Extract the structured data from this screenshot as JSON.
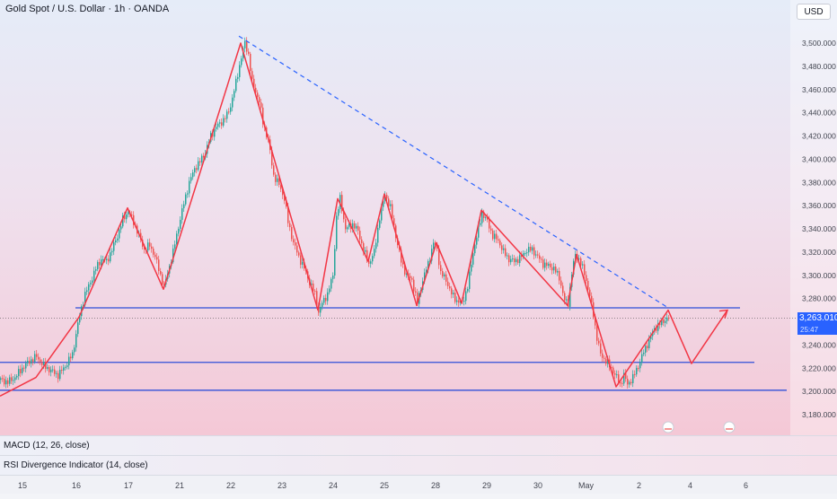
{
  "header": {
    "title": "Gold Spot / U.S. Dollar · 1h · OANDA",
    "currency": "USD"
  },
  "last_price": {
    "value": "3,263.010",
    "countdown": "25:47"
  },
  "indicators": {
    "macd_label": "MACD (12, 26, close)",
    "rsi_label": "RSI Divergence Indicator (14, close)"
  },
  "colors": {
    "up": "#26a69a",
    "down": "#ef5350",
    "pattern": "#f23645",
    "trendline": "#2962ff",
    "support": "#2f4fd8"
  },
  "chart_data": {
    "type": "candlestick",
    "title": "Gold Spot / U.S. Dollar · 1h · OANDA",
    "y_ticks": [
      "3,500.000",
      "3,480.000",
      "3,460.000",
      "3,440.000",
      "3,420.000",
      "3,400.000",
      "3,380.000",
      "3,360.000",
      "3,340.000",
      "3,320.000",
      "3,300.000",
      "3,280.000",
      "3,240.000",
      "3,220.000",
      "3,200.000",
      "3,180.000"
    ],
    "x_ticks": [
      "15",
      "16",
      "17",
      "21",
      "22",
      "23",
      "24",
      "25",
      "28",
      "29",
      "30",
      "May",
      "2",
      "4",
      "6"
    ],
    "ylim": [
      3170,
      3520
    ],
    "last_price": 3263.01,
    "close_path": [
      [
        0,
        3210
      ],
      [
        8,
        3208
      ],
      [
        16,
        3212
      ],
      [
        24,
        3220
      ],
      [
        32,
        3226
      ],
      [
        40,
        3230
      ],
      [
        48,
        3222
      ],
      [
        56,
        3218
      ],
      [
        64,
        3214
      ],
      [
        72,
        3222
      ],
      [
        80,
        3232
      ],
      [
        86,
        3258
      ],
      [
        90,
        3272
      ],
      [
        94,
        3284
      ],
      [
        100,
        3294
      ],
      [
        106,
        3306
      ],
      [
        112,
        3314
      ],
      [
        118,
        3312
      ],
      [
        124,
        3322
      ],
      [
        130,
        3334
      ],
      [
        136,
        3348
      ],
      [
        142,
        3355
      ],
      [
        148,
        3346
      ],
      [
        154,
        3334
      ],
      [
        160,
        3322
      ],
      [
        166,
        3326
      ],
      [
        172,
        3316
      ],
      [
        178,
        3300
      ],
      [
        182,
        3290
      ],
      [
        186,
        3302
      ],
      [
        192,
        3320
      ],
      [
        198,
        3342
      ],
      [
        204,
        3362
      ],
      [
        210,
        3380
      ],
      [
        216,
        3392
      ],
      [
        222,
        3398
      ],
      [
        228,
        3406
      ],
      [
        234,
        3420
      ],
      [
        240,
        3428
      ],
      [
        246,
        3432
      ],
      [
        252,
        3438
      ],
      [
        256,
        3446
      ],
      [
        262,
        3466
      ],
      [
        268,
        3488
      ],
      [
        272,
        3500
      ],
      [
        276,
        3490
      ],
      [
        280,
        3466
      ],
      [
        284,
        3458
      ],
      [
        288,
        3450
      ],
      [
        292,
        3432
      ],
      [
        298,
        3416
      ],
      [
        304,
        3386
      ],
      [
        310,
        3378
      ],
      [
        316,
        3366
      ],
      [
        320,
        3346
      ],
      [
        326,
        3328
      ],
      [
        332,
        3316
      ],
      [
        338,
        3306
      ],
      [
        344,
        3294
      ],
      [
        350,
        3284
      ],
      [
        354,
        3268
      ],
      [
        358,
        3276
      ],
      [
        364,
        3284
      ],
      [
        370,
        3300
      ],
      [
        374,
        3350
      ],
      [
        378,
        3366
      ],
      [
        384,
        3340
      ],
      [
        392,
        3344
      ],
      [
        398,
        3338
      ],
      [
        404,
        3322
      ],
      [
        410,
        3310
      ],
      [
        416,
        3320
      ],
      [
        422,
        3350
      ],
      [
        428,
        3370
      ],
      [
        434,
        3358
      ],
      [
        440,
        3334
      ],
      [
        446,
        3312
      ],
      [
        452,
        3300
      ],
      [
        458,
        3296
      ],
      [
        464,
        3276
      ],
      [
        470,
        3296
      ],
      [
        476,
        3310
      ],
      [
        482,
        3328
      ],
      [
        486,
        3322
      ],
      [
        490,
        3302
      ],
      [
        496,
        3296
      ],
      [
        502,
        3284
      ],
      [
        508,
        3278
      ],
      [
        514,
        3276
      ],
      [
        520,
        3290
      ],
      [
        526,
        3320
      ],
      [
        532,
        3340
      ],
      [
        536,
        3354
      ],
      [
        542,
        3346
      ],
      [
        548,
        3334
      ],
      [
        554,
        3330
      ],
      [
        560,
        3320
      ],
      [
        566,
        3314
      ],
      [
        572,
        3312
      ],
      [
        580,
        3316
      ],
      [
        586,
        3322
      ],
      [
        592,
        3322
      ],
      [
        598,
        3316
      ],
      [
        604,
        3310
      ],
      [
        610,
        3308
      ],
      [
        616,
        3306
      ],
      [
        622,
        3298
      ],
      [
        628,
        3278
      ],
      [
        632,
        3276
      ],
      [
        636,
        3302
      ],
      [
        640,
        3318
      ],
      [
        644,
        3314
      ],
      [
        650,
        3302
      ],
      [
        656,
        3282
      ],
      [
        660,
        3266
      ],
      [
        664,
        3246
      ],
      [
        668,
        3232
      ],
      [
        674,
        3226
      ],
      [
        680,
        3220
      ],
      [
        686,
        3212
      ],
      [
        690,
        3206
      ],
      [
        694,
        3214
      ],
      [
        698,
        3206
      ],
      [
        704,
        3212
      ],
      [
        710,
        3222
      ],
      [
        716,
        3234
      ],
      [
        722,
        3244
      ],
      [
        728,
        3254
      ],
      [
        734,
        3258
      ],
      [
        740,
        3262
      ],
      [
        744,
        3263
      ]
    ],
    "red_pattern": [
      [
        0,
        3196
      ],
      [
        40,
        3212
      ],
      [
        88,
        3264
      ],
      [
        142,
        3358
      ],
      [
        182,
        3288
      ],
      [
        268,
        3500
      ],
      [
        354,
        3270
      ],
      [
        376,
        3366
      ],
      [
        410,
        3312
      ],
      [
        428,
        3370
      ],
      [
        464,
        3274
      ],
      [
        486,
        3328
      ],
      [
        514,
        3276
      ],
      [
        536,
        3356
      ],
      [
        632,
        3274
      ],
      [
        642,
        3318
      ],
      [
        686,
        3204
      ],
      [
        744,
        3270
      ],
      [
        770,
        3224
      ],
      [
        810,
        3270
      ]
    ],
    "trendline": [
      [
        266,
        3506
      ],
      [
        744,
        3272
      ]
    ],
    "support_lines": [
      {
        "y": 3272,
        "x0": 84,
        "x1": 824
      },
      {
        "y": 3225,
        "x0": 0,
        "x1": 840
      },
      {
        "y": 3201,
        "x0": 0,
        "x1": 876
      }
    ]
  }
}
